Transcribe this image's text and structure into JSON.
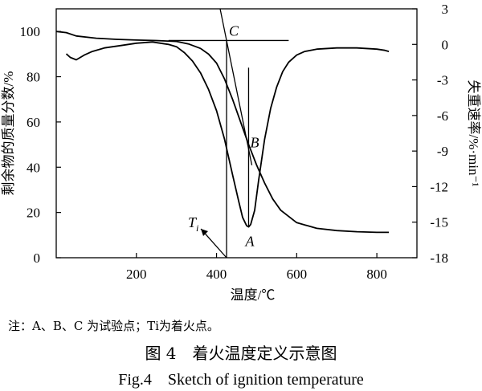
{
  "chart_data": {
    "type": "line",
    "xlabel": "温度/℃",
    "ylabel_left": "剩余物的质量分数/%",
    "ylabel_right": "失重速率/%·min⁻¹",
    "xlim": [
      0,
      900
    ],
    "ylim_left": [
      0,
      110
    ],
    "ylim_right": [
      -18,
      3
    ],
    "xticks": [
      200,
      400,
      600,
      800
    ],
    "yticks_left": [
      0,
      20,
      40,
      60,
      80,
      100
    ],
    "yticks_right": [
      3,
      0,
      -3,
      -6,
      -9,
      -12,
      -15,
      -18
    ],
    "series": [
      {
        "axis": "left",
        "x": [
          0,
          25,
          50,
          100,
          150,
          200,
          250,
          300,
          330,
          360,
          380,
          400,
          420,
          440,
          460,
          480,
          500,
          520,
          540,
          560,
          600,
          650,
          700,
          750,
          800,
          830
        ],
        "y": [
          100,
          99.5,
          98,
          97,
          96.5,
          96.2,
          96,
          95.6,
          94.5,
          92.5,
          90,
          86,
          79,
          70,
          60,
          50,
          41,
          33,
          26,
          21,
          15.5,
          13,
          12,
          11.5,
          11.2,
          11.2
        ]
      },
      {
        "axis": "right",
        "x": [
          25,
          35,
          50,
          70,
          90,
          120,
          160,
          200,
          240,
          260,
          280,
          300,
          320,
          340,
          360,
          380,
          400,
          420,
          440,
          455,
          465,
          475,
          480,
          485,
          495,
          505,
          520,
          535,
          550,
          565,
          580,
          600,
          620,
          650,
          700,
          750,
          800,
          820,
          830
        ],
        "y": [
          -0.8,
          -1.1,
          -1.3,
          -0.9,
          -0.6,
          -0.3,
          -0.1,
          0.1,
          0.2,
          0.1,
          0,
          -0.2,
          -0.7,
          -1.4,
          -2.4,
          -3.8,
          -5.6,
          -8,
          -11,
          -13.2,
          -14.6,
          -15.3,
          -15.4,
          -15.2,
          -14,
          -11.5,
          -8,
          -5.4,
          -3.6,
          -2.3,
          -1.5,
          -0.9,
          -0.6,
          -0.4,
          -0.3,
          -0.3,
          -0.4,
          -0.5,
          -0.6
        ]
      }
    ],
    "annotations": [
      {
        "label": "C",
        "x": 425,
        "y_left": 96
      },
      {
        "label": "B",
        "x": 480,
        "y_left": 48
      },
      {
        "label": "A",
        "x": 480,
        "y_right": -15.4
      },
      {
        "label": "Ti",
        "x": 425,
        "y_left": 0
      }
    ]
  },
  "note_text": "注：A、B、C 为试验点；Ti为着火点。",
  "caption_cn": "图 4　着火温度定义示意图",
  "caption_en": "Fig.4　Sketch of ignition temperature"
}
